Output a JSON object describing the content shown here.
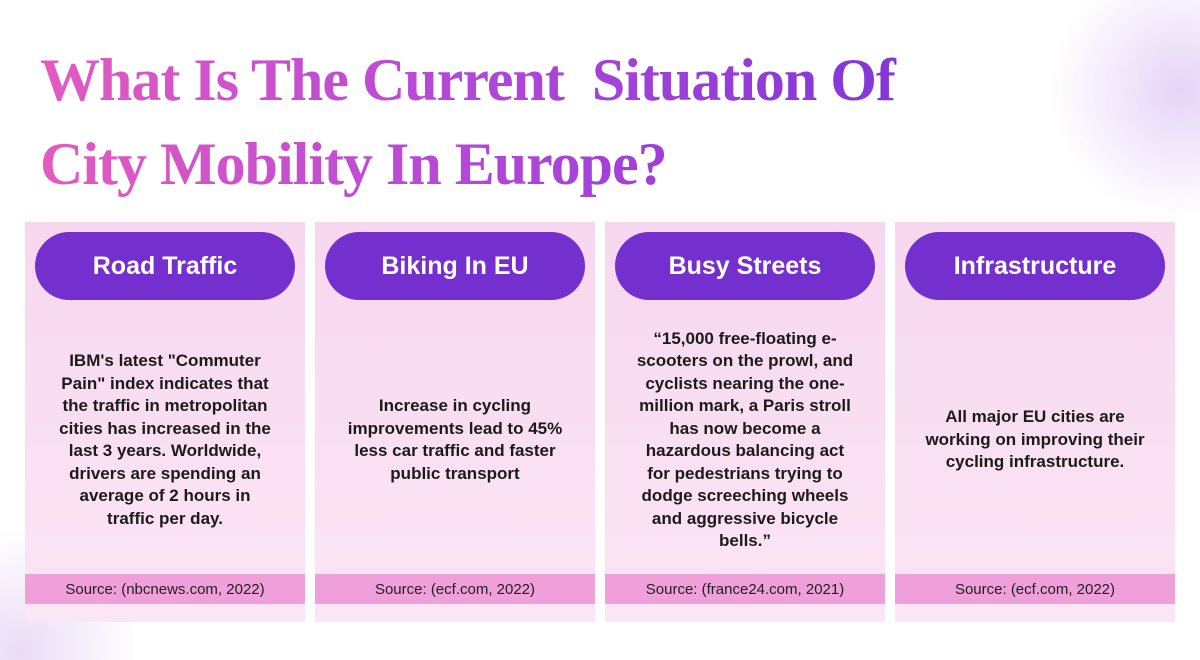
{
  "header": {
    "title_lines": [
      "What Is The Current  Situation Of",
      "City Mobility In Europe?"
    ]
  },
  "cards": [
    {
      "heading": "Road Traffic",
      "body": "IBM's latest \"Commuter Pain\" index indicates that the traffic in metropolitan cities has increased in the last 3 years. Worldwide, drivers are spending an average of 2 hours in traffic per day.",
      "source": "Source: (nbcnews.com, 2022)"
    },
    {
      "heading": "Biking In EU",
      "body": "Increase in cycling improvements lead to 45% less car traffic and faster public transport",
      "source": "Source: (ecf.com, 2022)"
    },
    {
      "heading": "Busy Streets",
      "body": "“15,000 free-floating e-scooters on the prowl, and cyclists nearing the one-million mark, a Paris stroll has now become a hazardous balancing act for pedestrians trying to dodge screeching wheels and aggressive bicycle bells.”",
      "source": "Source: (france24.com, 2021)"
    },
    {
      "heading": "Infrastructure",
      "body": "All major EU cities are working on improving their cycling infrastructure.",
      "source": "Source: (ecf.com, 2022)"
    }
  ]
}
